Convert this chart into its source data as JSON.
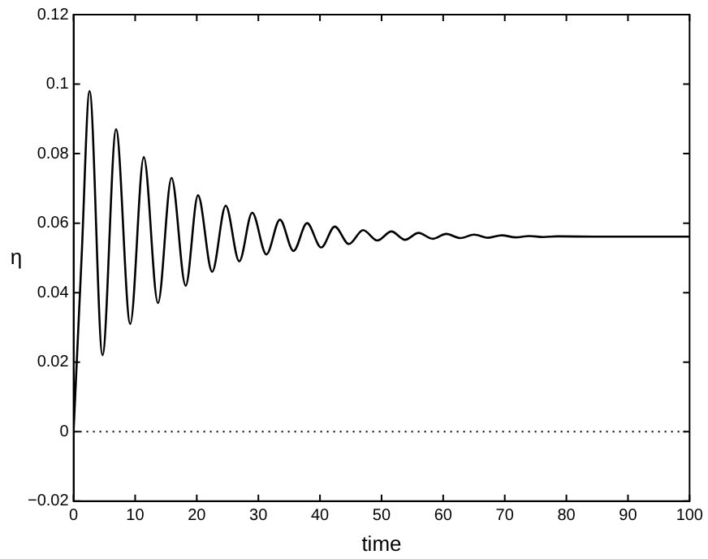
{
  "chart_data": {
    "type": "line",
    "xlabel": "time",
    "ylabel": "η",
    "xlim": [
      0,
      100
    ],
    "xticks": [
      0,
      10,
      20,
      30,
      40,
      50,
      60,
      70,
      80,
      90,
      100
    ],
    "ylim": [
      -0.02,
      0.12
    ],
    "yticks": [
      {
        "value": -0.02,
        "label": "−0.02"
      },
      0,
      0.02,
      0.04,
      0.06,
      0.08,
      0.1,
      0.12
    ],
    "grid": false,
    "legend": false,
    "marker": "none",
    "line_style": "solid",
    "series": [
      {
        "color": "#000000",
        "x": [
          0,
          1.3,
          2.6,
          4.7,
          6.9,
          9.2,
          11.4,
          13.7,
          15.9,
          18.2,
          20.2,
          22.5,
          24.7,
          26.9,
          29.0,
          31.3,
          33.5,
          35.7,
          37.9,
          40.2,
          42.4,
          44.7,
          47.0,
          49.3,
          51.6,
          53.8,
          56.0,
          58.3,
          60.5,
          62.8,
          65.0,
          67.3,
          69.5,
          71.8,
          74.0,
          76.3,
          78.5,
          85,
          100
        ],
        "values": [
          0,
          0.05,
          0.098,
          0.022,
          0.087,
          0.031,
          0.079,
          0.037,
          0.073,
          0.042,
          0.068,
          0.046,
          0.065,
          0.049,
          0.063,
          0.051,
          0.061,
          0.052,
          0.06,
          0.053,
          0.059,
          0.054,
          0.058,
          0.055,
          0.0576,
          0.0552,
          0.0572,
          0.0555,
          0.0569,
          0.0557,
          0.0567,
          0.0558,
          0.0565,
          0.0559,
          0.0563,
          0.056,
          0.0562,
          0.0561,
          0.0561
        ]
      }
    ],
    "ref_lines": [
      {
        "axis": "y",
        "value": 0,
        "line_style": "dotted",
        "color": "#000000"
      }
    ]
  }
}
